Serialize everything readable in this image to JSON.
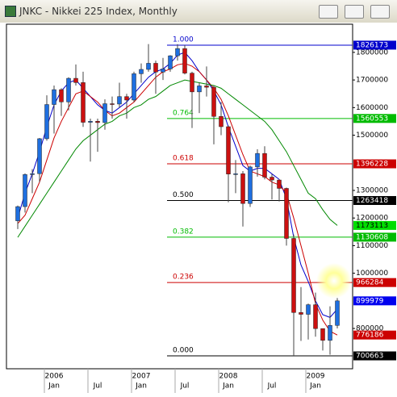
{
  "window_title": "JNKC - Nikkei 225 Index, Monthly",
  "chart_data": {
    "type": "candlestick",
    "categories": [
      null,
      null,
      null,
      null,
      null,
      "Jan",
      null,
      null,
      null,
      null,
      null,
      "Jul",
      null,
      null,
      null,
      null,
      null,
      "Jan",
      null,
      null,
      null,
      null,
      null,
      "Jul",
      null,
      null,
      null,
      null,
      null,
      "Jan",
      null,
      null,
      null,
      null,
      null,
      "Jul",
      null,
      null,
      null,
      null,
      null,
      "Jan",
      null,
      null,
      null
    ],
    "years": [
      null,
      null,
      null,
      null,
      null,
      "2006",
      null,
      null,
      null,
      null,
      null,
      null,
      null,
      null,
      null,
      null,
      null,
      "2007",
      null,
      null,
      null,
      null,
      null,
      null,
      null,
      null,
      null,
      null,
      null,
      "2008",
      null,
      null,
      null,
      null,
      null,
      null,
      null,
      null,
      null,
      null,
      null,
      "2009",
      null,
      null,
      null
    ],
    "open": [
      1190000,
      1241300,
      1357400,
      1360700,
      1487200,
      1611100,
      1665000,
      1620500,
      1706000,
      1690600,
      1546700,
      1550500,
      1545700,
      1614000,
      1612800,
      1639900,
      1627400,
      1722600,
      1738300,
      1760400,
      1728800,
      1740000,
      1787600,
      1813800,
      1724800,
      1656900,
      1678600,
      1673700,
      1568000,
      1530800,
      1359200,
      1360300,
      1252600,
      1385000,
      1433900,
      1348100,
      1337700,
      1307300,
      1126000,
      857700,
      851200,
      886000,
      799400,
      756800,
      811000
    ],
    "high": [
      1245000,
      1361700,
      1377000,
      1490000,
      1644500,
      1680000,
      1670000,
      1710000,
      1756300,
      1730000,
      1560000,
      1560000,
      1630000,
      1640000,
      1690000,
      1650000,
      1730000,
      1760000,
      1830000,
      1770000,
      1780000,
      1790000,
      1829700,
      1826173,
      1730000,
      1690000,
      1748800,
      1680000,
      1620000,
      1535000,
      1410000,
      1370000,
      1390000,
      1448900,
      1460000,
      1360000,
      1340000,
      1310000,
      1140000,
      950000,
      890000,
      930000,
      800000,
      880000,
      910000
    ],
    "low": [
      1160000,
      1220000,
      1290000,
      1330000,
      1480000,
      1505900,
      1570000,
      1590000,
      1680000,
      1530000,
      1404500,
      1440000,
      1520000,
      1560000,
      1600000,
      1560000,
      1620000,
      1690000,
      1730000,
      1650000,
      1700000,
      1730000,
      1770000,
      1720000,
      1526200,
      1580000,
      1640000,
      1466900,
      1500000,
      1257300,
      1290000,
      1169100,
      1240000,
      1350000,
      1340000,
      1267000,
      1260000,
      1100000,
      700663,
      755000,
      760000,
      770000,
      720000,
      705000,
      800000
    ],
    "close": [
      1241300,
      1357400,
      1360700,
      1487200,
      1611100,
      1665000,
      1620500,
      1706000,
      1690600,
      1546700,
      1550500,
      1545700,
      1614000,
      1612800,
      1639900,
      1627400,
      1722600,
      1738300,
      1760400,
      1728800,
      1740000,
      1787600,
      1813800,
      1724800,
      1656900,
      1678600,
      1673700,
      1568000,
      1530800,
      1359200,
      1360300,
      1252600,
      1385000,
      1433900,
      1348100,
      1337700,
      1307300,
      1126000,
      857700,
      851200,
      886000,
      799400,
      756800,
      811000,
      899979
    ],
    "up_color": "#1e6fe0",
    "down_color": "#cc1010",
    "series": [
      {
        "color": "#0000cc",
        "values": [
          1200000,
          1290000,
          1360000,
          1440000,
          1530000,
          1610000,
          1660000,
          1690000,
          1700000,
          1670000,
          1640000,
          1610000,
          1590000,
          1580000,
          1600000,
          1620000,
          1650000,
          1680000,
          1710000,
          1730000,
          1740000,
          1760000,
          1790000,
          1800000,
          1770000,
          1730000,
          1700000,
          1660000,
          1610000,
          1530000,
          1460000,
          1390000,
          1370000,
          1380000,
          1380000,
          1360000,
          1340000,
          1270000,
          1130000,
          1030000,
          970000,
          900000,
          850000,
          840000,
          870000
        ]
      },
      {
        "color": "#cc0000",
        "values": [
          1180000,
          1210000,
          1270000,
          1330000,
          1410000,
          1490000,
          1550000,
          1600000,
          1650000,
          1660000,
          1640000,
          1620000,
          1590000,
          1570000,
          1580000,
          1600000,
          1620000,
          1650000,
          1680000,
          1710000,
          1730000,
          1740000,
          1755000,
          1760000,
          1750000,
          1730000,
          1700000,
          1670000,
          1630000,
          1570000,
          1500000,
          1430000,
          1370000,
          1360000,
          1350000,
          1330000,
          1320000,
          1290000,
          1200000,
          1100000,
          1000000,
          890000,
          830000,
          790000,
          776186
        ]
      },
      {
        "color": "#008800",
        "values": [
          1130000,
          1170000,
          1210000,
          1250000,
          1290000,
          1330000,
          1370000,
          1410000,
          1450000,
          1480000,
          1500000,
          1520000,
          1540000,
          1550000,
          1570000,
          1580000,
          1600000,
          1610000,
          1630000,
          1640000,
          1660000,
          1680000,
          1690000,
          1700000,
          1695000,
          1690000,
          1685000,
          1680000,
          1670000,
          1650000,
          1630000,
          1610000,
          1590000,
          1570000,
          1550000,
          1520000,
          1480000,
          1440000,
          1390000,
          1340000,
          1290000,
          1270000,
          1230000,
          1195000,
          1173113
        ]
      }
    ],
    "fib_levels": [
      {
        "label": "1.000",
        "price": 1826173,
        "color": "#0000cc"
      },
      {
        "label": "0.764",
        "price": 1560553,
        "color": "#00bb00"
      },
      {
        "label": "0.618",
        "price": 1396228,
        "color": "#cc0000"
      },
      {
        "label": "0.500",
        "price": 1263418,
        "color": "#000000"
      },
      {
        "label": "0.382",
        "price": 1130608,
        "color": "#00bb00"
      },
      {
        "label": "0.236",
        "price": 966284,
        "color": "#cc0000"
      },
      {
        "label": "0.000",
        "price": 700663,
        "color": "#000000"
      }
    ],
    "ylim": [
      654000,
      1902000
    ],
    "yticks": [
      800000,
      1000000,
      1100000,
      1200000,
      1300000,
      1500000,
      1600000,
      1700000,
      1800000
    ],
    "grid": false
  }
}
